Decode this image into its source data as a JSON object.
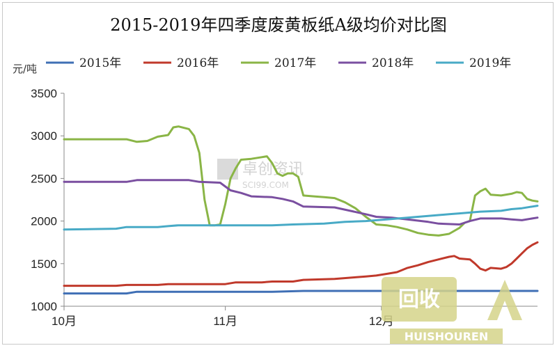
{
  "chart_data": {
    "type": "line",
    "title": "2015-2019年四季度废黄板纸A级均价对比图",
    "ylabel": "元/吨",
    "xlabel": "",
    "ylim": [
      1000,
      3500
    ],
    "yticks": [
      1000,
      1500,
      2000,
      2500,
      3000,
      3500
    ],
    "xlim": [
      0,
      91
    ],
    "x_categories": [
      {
        "label": "10月",
        "day": 0
      },
      {
        "label": "11月",
        "day": 31
      },
      {
        "label": "12月",
        "day": 61
      }
    ],
    "grid": false,
    "legend_position": "top",
    "series": [
      {
        "name": "2015年",
        "color": "#3f6fb5",
        "points": [
          [
            0,
            1150
          ],
          [
            12,
            1150
          ],
          [
            14,
            1170
          ],
          [
            40,
            1170
          ],
          [
            46,
            1180
          ],
          [
            91,
            1180
          ]
        ]
      },
      {
        "name": "2016年",
        "color": "#c0392b",
        "points": [
          [
            0,
            1240
          ],
          [
            10,
            1240
          ],
          [
            12,
            1250
          ],
          [
            18,
            1250
          ],
          [
            20,
            1260
          ],
          [
            31,
            1260
          ],
          [
            33,
            1280
          ],
          [
            38,
            1280
          ],
          [
            40,
            1290
          ],
          [
            44,
            1290
          ],
          [
            46,
            1310
          ],
          [
            52,
            1320
          ],
          [
            56,
            1340
          ],
          [
            58,
            1350
          ],
          [
            60,
            1360
          ],
          [
            62,
            1380
          ],
          [
            64,
            1400
          ],
          [
            66,
            1450
          ],
          [
            68,
            1480
          ],
          [
            70,
            1520
          ],
          [
            72,
            1550
          ],
          [
            74,
            1580
          ],
          [
            75,
            1590
          ],
          [
            76,
            1560
          ],
          [
            78,
            1550
          ],
          [
            79,
            1500
          ],
          [
            80,
            1440
          ],
          [
            81,
            1420
          ],
          [
            82,
            1450
          ],
          [
            84,
            1440
          ],
          [
            85,
            1460
          ],
          [
            86,
            1500
          ],
          [
            87,
            1560
          ],
          [
            88,
            1620
          ],
          [
            89,
            1680
          ],
          [
            90,
            1720
          ],
          [
            91,
            1750
          ]
        ]
      },
      {
        "name": "2017年",
        "color": "#8ab546",
        "points": [
          [
            0,
            2960
          ],
          [
            12,
            2960
          ],
          [
            14,
            2930
          ],
          [
            16,
            2940
          ],
          [
            18,
            2990
          ],
          [
            20,
            3010
          ],
          [
            21,
            3100
          ],
          [
            22,
            3110
          ],
          [
            24,
            3080
          ],
          [
            25,
            3000
          ],
          [
            26,
            2800
          ],
          [
            27,
            2250
          ],
          [
            28,
            1950
          ],
          [
            29,
            1950
          ],
          [
            30,
            1960
          ],
          [
            31,
            2200
          ],
          [
            32,
            2500
          ],
          [
            33,
            2620
          ],
          [
            34,
            2720
          ],
          [
            36,
            2730
          ],
          [
            38,
            2750
          ],
          [
            39,
            2760
          ],
          [
            40,
            2680
          ],
          [
            41,
            2560
          ],
          [
            42,
            2530
          ],
          [
            43,
            2560
          ],
          [
            44,
            2560
          ],
          [
            45,
            2520
          ],
          [
            46,
            2300
          ],
          [
            48,
            2290
          ],
          [
            50,
            2280
          ],
          [
            52,
            2270
          ],
          [
            54,
            2220
          ],
          [
            56,
            2150
          ],
          [
            58,
            2050
          ],
          [
            60,
            1960
          ],
          [
            62,
            1950
          ],
          [
            64,
            1930
          ],
          [
            66,
            1900
          ],
          [
            68,
            1860
          ],
          [
            70,
            1840
          ],
          [
            72,
            1830
          ],
          [
            74,
            1850
          ],
          [
            76,
            1920
          ],
          [
            77,
            1980
          ],
          [
            78,
            2000
          ],
          [
            79,
            2300
          ],
          [
            80,
            2350
          ],
          [
            81,
            2380
          ],
          [
            82,
            2310
          ],
          [
            84,
            2300
          ],
          [
            86,
            2320
          ],
          [
            87,
            2340
          ],
          [
            88,
            2330
          ],
          [
            89,
            2260
          ],
          [
            90,
            2240
          ],
          [
            91,
            2230
          ]
        ]
      },
      {
        "name": "2018年",
        "color": "#7a4fa0",
        "points": [
          [
            0,
            2460
          ],
          [
            12,
            2460
          ],
          [
            14,
            2480
          ],
          [
            24,
            2480
          ],
          [
            26,
            2460
          ],
          [
            30,
            2450
          ],
          [
            32,
            2360
          ],
          [
            34,
            2330
          ],
          [
            36,
            2290
          ],
          [
            40,
            2280
          ],
          [
            42,
            2260
          ],
          [
            44,
            2230
          ],
          [
            46,
            2170
          ],
          [
            52,
            2160
          ],
          [
            55,
            2120
          ],
          [
            58,
            2080
          ],
          [
            60,
            2050
          ],
          [
            63,
            2040
          ],
          [
            66,
            2020
          ],
          [
            70,
            1990
          ],
          [
            72,
            1970
          ],
          [
            76,
            1960
          ],
          [
            78,
            2000
          ],
          [
            80,
            2030
          ],
          [
            84,
            2030
          ],
          [
            86,
            2020
          ],
          [
            88,
            2010
          ],
          [
            90,
            2030
          ],
          [
            91,
            2040
          ]
        ]
      },
      {
        "name": "2019年",
        "color": "#48aac6",
        "points": [
          [
            0,
            1900
          ],
          [
            10,
            1910
          ],
          [
            12,
            1930
          ],
          [
            18,
            1930
          ],
          [
            20,
            1940
          ],
          [
            22,
            1950
          ],
          [
            31,
            1950
          ],
          [
            36,
            1950
          ],
          [
            40,
            1950
          ],
          [
            44,
            1960
          ],
          [
            50,
            1970
          ],
          [
            54,
            1990
          ],
          [
            58,
            2000
          ],
          [
            62,
            2020
          ],
          [
            66,
            2040
          ],
          [
            68,
            2050
          ],
          [
            72,
            2070
          ],
          [
            74,
            2080
          ],
          [
            76,
            2090
          ],
          [
            78,
            2100
          ],
          [
            80,
            2110
          ],
          [
            84,
            2120
          ],
          [
            86,
            2140
          ],
          [
            88,
            2150
          ],
          [
            90,
            2170
          ],
          [
            91,
            2180
          ]
        ]
      }
    ]
  },
  "watermark": {
    "name_text": "卓创资讯",
    "url_text": "SCI99.COM"
  },
  "logo": {
    "mark_text": "回收",
    "brand_text": "HUISHOUREN"
  }
}
